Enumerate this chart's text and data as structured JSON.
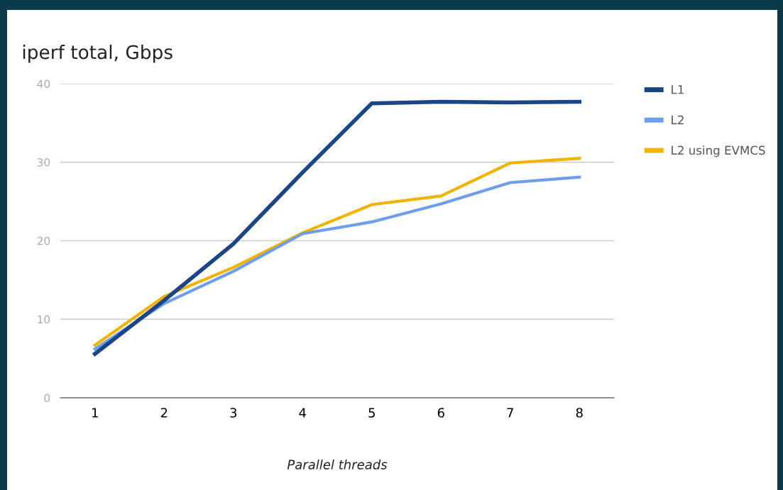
{
  "chart_data": {
    "type": "line",
    "title": "iperf total, Gbps",
    "xlabel": "Parallel threads",
    "categories": [
      "1",
      "2",
      "3",
      "4",
      "5",
      "6",
      "7",
      "8"
    ],
    "series": [
      {
        "name": "L1",
        "color": "#1c4587",
        "values": [
          5.6,
          12.4,
          19.6,
          28.7,
          37.5,
          37.7,
          37.6,
          37.7
        ]
      },
      {
        "name": "L2",
        "color": "#6d9eeb",
        "values": [
          6.2,
          12.0,
          16.1,
          20.9,
          22.4,
          24.7,
          27.4,
          28.1
        ]
      },
      {
        "name": "L2 using EVMCS",
        "color": "#f1b300",
        "values": [
          6.7,
          12.9,
          16.6,
          21.0,
          24.6,
          25.7,
          29.9,
          30.5
        ]
      }
    ],
    "ylim": [
      0,
      40
    ],
    "yticks": [
      0,
      10,
      20,
      30,
      40
    ],
    "grid": "y",
    "legend": "top right",
    "marker": "none",
    "line_style": "solid"
  }
}
